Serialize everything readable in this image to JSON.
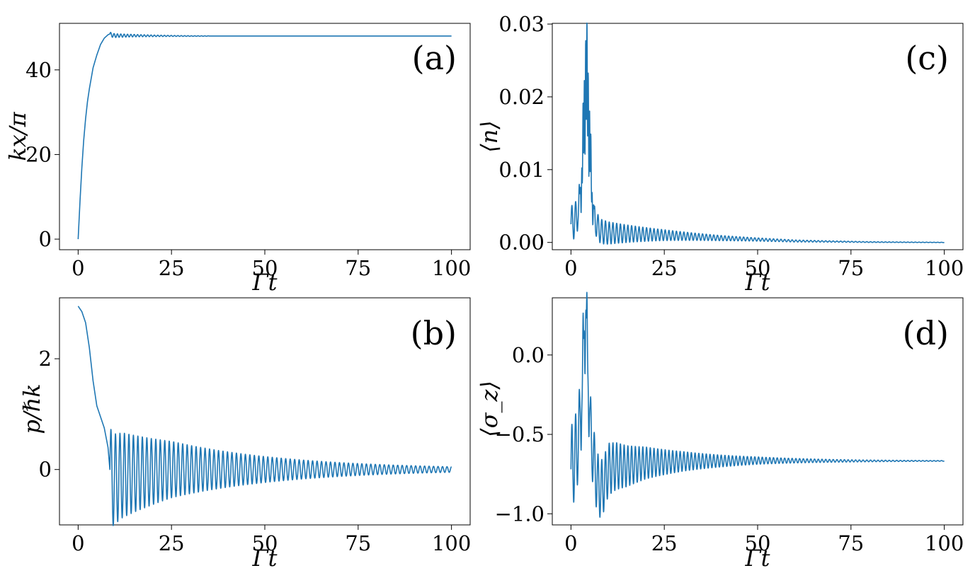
{
  "colors": {
    "series": "#1f77b4",
    "axes": "#000000",
    "background": "#ffffff"
  },
  "chart_data": [
    {
      "type": "line",
      "panel_label": "(a)",
      "xlabel": "Γt",
      "ylabel": "kx/π",
      "xlim": [
        -5,
        105
      ],
      "ylim": [
        -2.5,
        51
      ],
      "xticks": [
        0,
        25,
        50,
        75,
        100
      ],
      "xtick_labels": [
        "0",
        "25",
        "50",
        "75",
        "100"
      ],
      "yticks": [
        0,
        20,
        40
      ],
      "ytick_labels": [
        "0",
        "20",
        "40"
      ],
      "grid": false,
      "series": [
        {
          "x": [
            0,
            0.5,
            1,
            1.5,
            2,
            2.5,
            3,
            3.5,
            4,
            5,
            6,
            7,
            8,
            8.5,
            9,
            10,
            12,
            15,
            20,
            30,
            40,
            60,
            80,
            100
          ],
          "values": [
            0,
            9,
            17,
            23.5,
            28.5,
            32.5,
            35.5,
            38,
            40.5,
            43.5,
            46,
            47.5,
            48.3,
            48.5,
            48.2,
            48.1,
            48.1,
            48.1,
            48.05,
            48,
            48,
            48,
            48,
            48
          ],
          "oscillation": {
            "from": 8.5,
            "to": 35,
            "amplitude_start": 0.5,
            "amplitude_end": 0.05,
            "period": 0.9
          }
        }
      ]
    },
    {
      "type": "line",
      "panel_label": "(b)",
      "xlabel": "Γt",
      "ylabel": "p/ℏk",
      "xlim": [
        -5,
        105
      ],
      "ylim": [
        -1,
        3.1
      ],
      "xticks": [
        0,
        25,
        50,
        75,
        100
      ],
      "xtick_labels": [
        "0",
        "25",
        "50",
        "75",
        "100"
      ],
      "yticks": [
        0,
        2
      ],
      "ytick_labels": [
        "0",
        "2"
      ],
      "grid": false,
      "series": [
        {
          "x": [
            0,
            1,
            2,
            3,
            4,
            5,
            6,
            7,
            8,
            8.5,
            9,
            12,
            25,
            50,
            75,
            100
          ],
          "values": [
            2.95,
            2.85,
            2.65,
            2.2,
            1.6,
            1.15,
            0.95,
            0.75,
            0.4,
            0.0,
            -0.2,
            -0.1,
            0.0,
            0.0,
            0.0,
            0.0
          ],
          "oscillation": {
            "from": 8.5,
            "to": 100,
            "amplitude_start": 0.85,
            "amplitude_end": 0.05,
            "period": 1.2
          }
        }
      ]
    },
    {
      "type": "line",
      "panel_label": "(c)",
      "xlabel": "Γt",
      "ylabel": "⟨n⟩",
      "xlim": [
        -5,
        105
      ],
      "ylim": [
        -0.001,
        0.0301
      ],
      "xticks": [
        0,
        25,
        50,
        75,
        100
      ],
      "xtick_labels": [
        "0",
        "25",
        "50",
        "75",
        "100"
      ],
      "yticks": [
        0.0,
        0.01,
        0.02,
        0.03
      ],
      "ytick_labels": [
        "0.00",
        "0.01",
        "0.02",
        "0.03"
      ],
      "grid": false,
      "series": [
        {
          "x": [
            0,
            1,
            2,
            3,
            3.5,
            4,
            4.5,
            5,
            6,
            8,
            10,
            15,
            25,
            40,
            60,
            80,
            100
          ],
          "values": [
            0.0025,
            0.003,
            0.004,
            0.007,
            0.012,
            0.016,
            0.014,
            0.009,
            0.003,
            0.0015,
            0.0013,
            0.0012,
            0.001,
            0.0006,
            0.0002,
            5e-05,
            0.0
          ],
          "oscillation": {
            "from": 0,
            "to": 100,
            "amplitude_start": 0.0025,
            "amplitude_end": 2e-05,
            "period": 1.0,
            "peak_t": 4.2,
            "peak_value": 0.0288
          }
        }
      ]
    },
    {
      "type": "line",
      "panel_label": "(d)",
      "xlabel": "Γt",
      "ylabel": "⟨σ_z⟩",
      "xlim": [
        -5,
        105
      ],
      "ylim": [
        -1.07,
        0.36
      ],
      "xticks": [
        0,
        25,
        50,
        75,
        100
      ],
      "xtick_labels": [
        "0",
        "25",
        "50",
        "75",
        "100"
      ],
      "yticks": [
        -1.0,
        -0.5,
        0.0
      ],
      "ytick_labels": [
        "−1.0",
        "−0.5",
        "0.0"
      ],
      "grid": false,
      "series": [
        {
          "x": [
            0,
            1,
            2,
            3,
            3.5,
            4,
            4.5,
            5,
            6,
            7,
            8,
            9,
            10,
            12,
            15,
            20,
            30,
            50,
            75,
            100
          ],
          "values": [
            -0.72,
            -0.65,
            -0.55,
            -0.3,
            0.05,
            0.15,
            -0.1,
            -0.45,
            -0.65,
            -0.8,
            -0.85,
            -0.8,
            -0.72,
            -0.7,
            -0.7,
            -0.68,
            -0.67,
            -0.665,
            -0.667,
            -0.667
          ],
          "oscillation": {
            "from": 0,
            "to": 100,
            "amplitude_start": 0.27,
            "amplitude_end": 0.002,
            "period": 1.0,
            "peak_t": 3.8,
            "peak_value": 0.3
          }
        }
      ]
    }
  ]
}
